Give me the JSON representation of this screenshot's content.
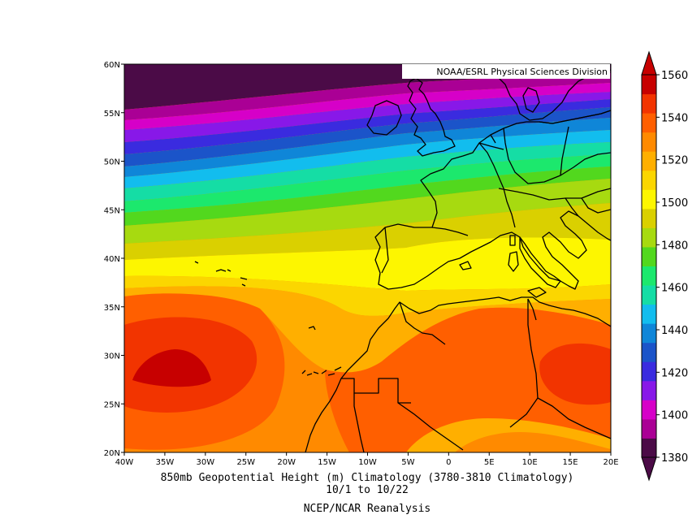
{
  "map": {
    "credit": "NOAA/ESRL Physical Sciences Division",
    "lat_ticks": [
      "20N",
      "25N",
      "30N",
      "35N",
      "40N",
      "45N",
      "50N",
      "55N",
      "60N"
    ],
    "lon_ticks": [
      "40W",
      "35W",
      "30W",
      "25W",
      "20W",
      "15W",
      "10W",
      "5W",
      "0",
      "5E",
      "10E",
      "15E",
      "20E"
    ]
  },
  "colorbar": {
    "levels": [
      "1380",
      "1400",
      "1420",
      "1440",
      "1460",
      "1480",
      "1500",
      "1520",
      "1540",
      "1560"
    ],
    "colors": [
      "#4b0b47",
      "#aa0095",
      "#d600c8",
      "#8818e8",
      "#3a2bdf",
      "#1b54c9",
      "#0f86d8",
      "#12bdee",
      "#15dda5",
      "#1ce86d",
      "#52d81e",
      "#a7da10",
      "#dad000",
      "#fdf600",
      "#fbd600",
      "#ffaf00",
      "#ff8a00",
      "#ff5f00",
      "#f23400",
      "#c70000"
    ]
  },
  "caption": {
    "line1": "850mb Geopotential Height (m) Climatology (3780-3810 Climatology)",
    "line2": "10/1  to 10/22",
    "line3": "NCEP/NCAR Reanalysis"
  }
}
